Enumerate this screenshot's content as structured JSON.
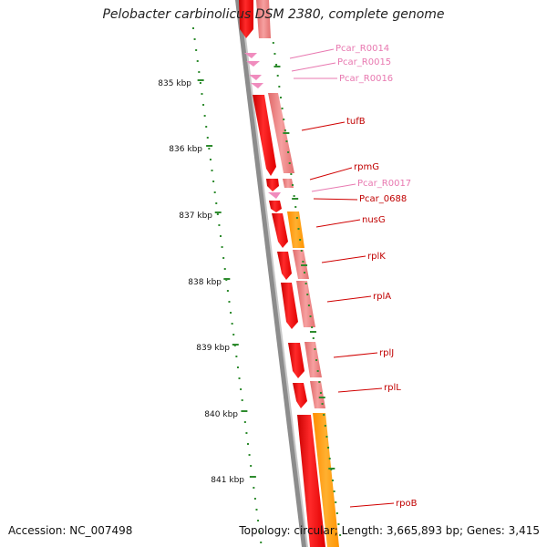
{
  "title": "Pelobacter carbinolicus DSM 2380, complete genome",
  "footer": {
    "accession": "Accession: NC_007498",
    "topology": "Topology: circular; Length: 3,665,893 bp; Genes: 3,415"
  },
  "colors": {
    "backbone": "#8c8c8c",
    "tick": "#2e8b2e",
    "rna": "#f08cbe",
    "gene": "#ff0000",
    "gene_light": "#f08080",
    "orange": "#ffa000",
    "label_red": "#c00000",
    "label_pink": "#e878b0"
  },
  "scale": {
    "unit": "kbp",
    "major_ticks": [
      835,
      836,
      837,
      838,
      839,
      840,
      841
    ]
  },
  "labels": [
    {
      "text": "Pcar_R0014",
      "type": "rna"
    },
    {
      "text": "Pcar_R0015",
      "type": "rna"
    },
    {
      "text": "Pcar_R0016",
      "type": "rna"
    },
    {
      "text": "tufB",
      "type": "gene"
    },
    {
      "text": "rpmG",
      "type": "gene"
    },
    {
      "text": "Pcar_R0017",
      "type": "rna"
    },
    {
      "text": "Pcar_0688",
      "type": "gene"
    },
    {
      "text": "nusG",
      "type": "gene"
    },
    {
      "text": "rplK",
      "type": "gene"
    },
    {
      "text": "rplA",
      "type": "gene"
    },
    {
      "text": "rplJ",
      "type": "gene"
    },
    {
      "text": "rplL",
      "type": "gene"
    },
    {
      "text": "rpoB",
      "type": "gene"
    }
  ]
}
